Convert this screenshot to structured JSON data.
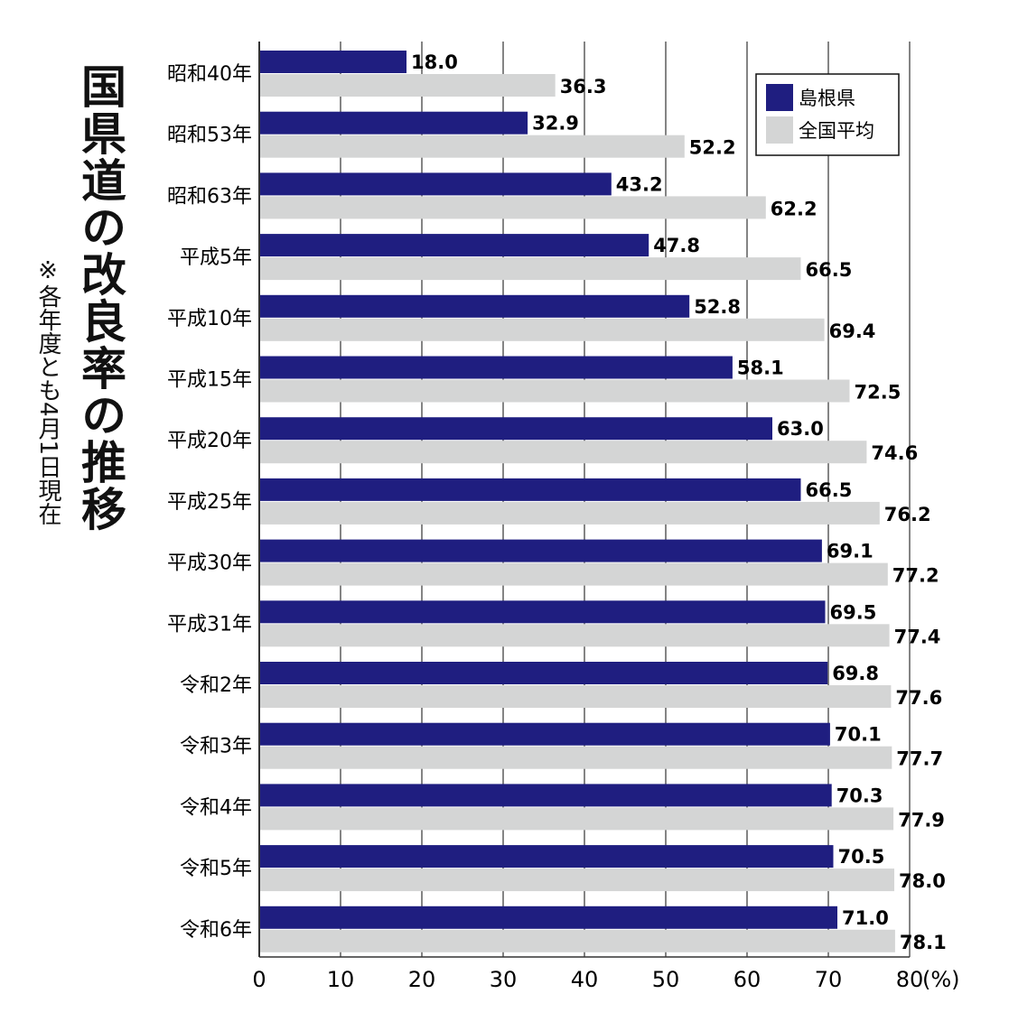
{
  "title": "国県道の改良率の推移",
  "note": "※各年度とも4月1日現在",
  "colors": {
    "shimane": "#1f1e80",
    "national": "#d4d5d5",
    "grid": "#333333"
  },
  "chart_data": {
    "type": "bar",
    "orientation": "horizontal",
    "categories": [
      "昭和40年",
      "昭和53年",
      "昭和63年",
      "平成5年",
      "平成10年",
      "平成15年",
      "平成20年",
      "平成25年",
      "平成30年",
      "平成31年",
      "令和2年",
      "令和3年",
      "令和4年",
      "令和5年",
      "令和6年"
    ],
    "series": [
      {
        "name": "島根県",
        "values": [
          18.0,
          32.9,
          43.2,
          47.8,
          52.8,
          58.1,
          63.0,
          66.5,
          69.1,
          69.5,
          69.8,
          70.1,
          70.3,
          70.5,
          71.0
        ]
      },
      {
        "name": "全国平均",
        "values": [
          36.3,
          52.2,
          62.2,
          66.5,
          69.4,
          72.5,
          74.6,
          76.2,
          77.2,
          77.4,
          77.6,
          77.7,
          77.9,
          78.0,
          78.1
        ]
      }
    ],
    "xlim": [
      0,
      80
    ],
    "xticks": [
      "0",
      "10",
      "20",
      "30",
      "40",
      "50",
      "60",
      "70",
      "80"
    ],
    "xunit": "(%)",
    "grid": true,
    "legend_position": "top-right"
  }
}
